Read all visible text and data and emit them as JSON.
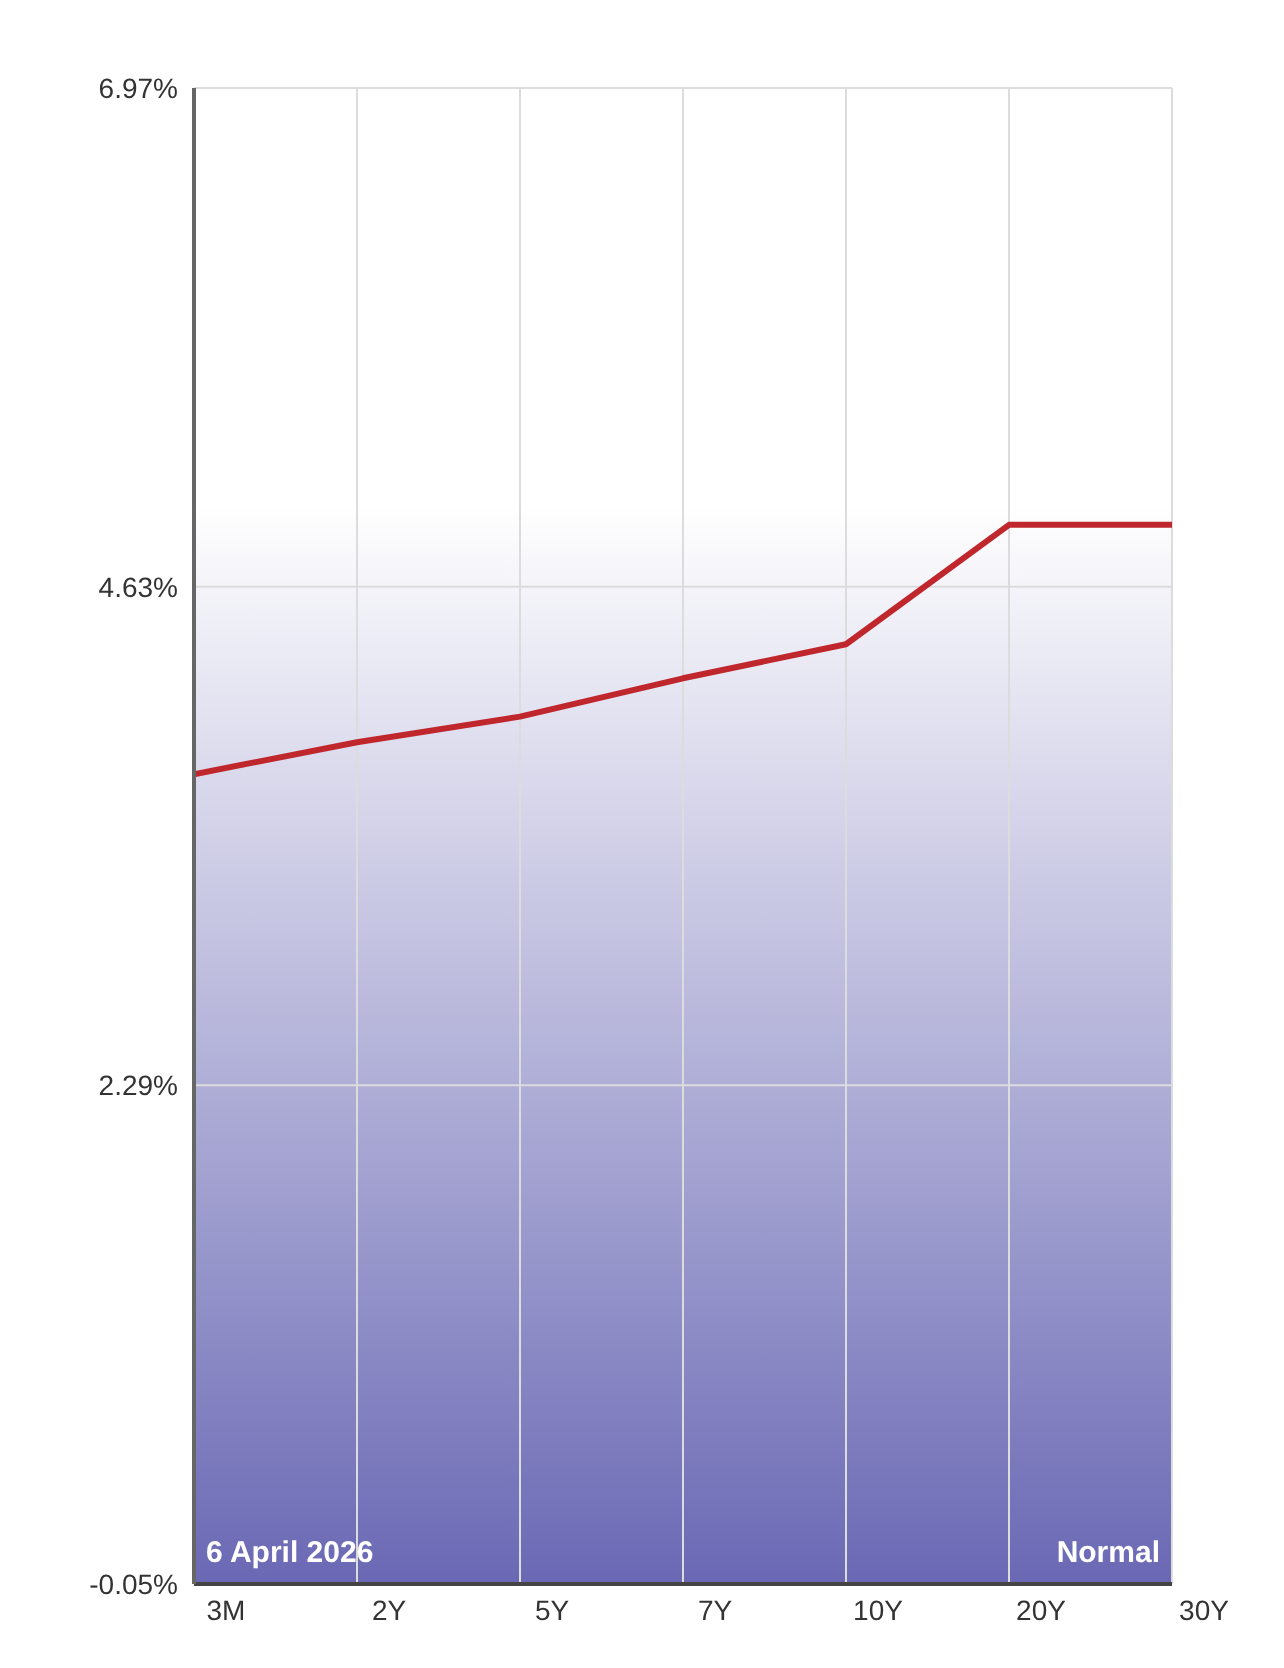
{
  "chart_data": {
    "type": "line",
    "categories": [
      "3M",
      "2Y",
      "5Y",
      "7Y",
      "10Y",
      "20Y",
      "30Y"
    ],
    "series": [
      {
        "color": "#c0272d",
        "values": [
          3.75,
          3.9,
          4.02,
          4.2,
          4.36,
          4.92,
          4.92
        ]
      }
    ],
    "ylim": [
      -0.05,
      6.97
    ],
    "yticks": [
      {
        "value": -0.05,
        "label": "-0.05%"
      },
      {
        "value": 2.29,
        "label": "2.29%"
      },
      {
        "value": 4.63,
        "label": "4.63%"
      },
      {
        "value": 6.97,
        "label": "6.97%"
      }
    ],
    "grid": true,
    "marker": "none",
    "line_style": "solid",
    "annotations": [
      "6  April 2026",
      "Normal"
    ]
  }
}
